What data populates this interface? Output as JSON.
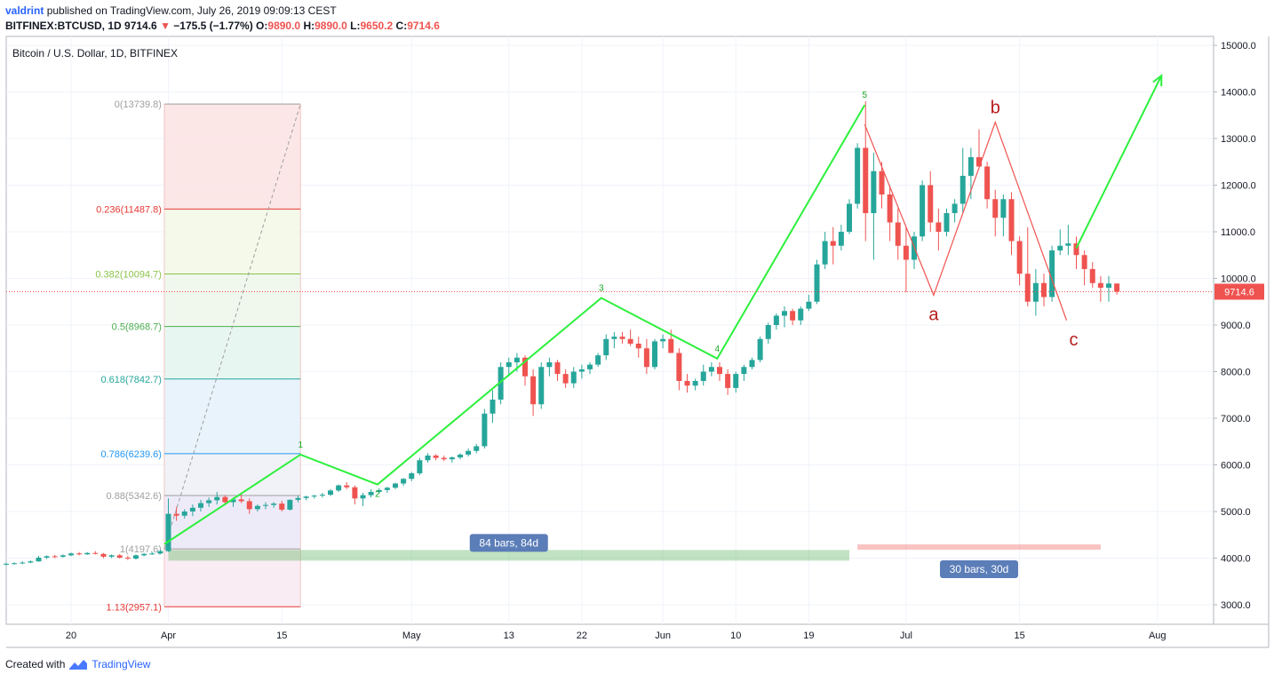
{
  "header": {
    "user": "valdrint",
    "published_text": "published on TradingView.com, July 26, 2019 09:09:13 CEST",
    "symbol": "BITFINEX:BTCUSD, 1D",
    "last": "9714.6",
    "change": "−175.5 (−1.77%)",
    "ohlc": [
      {
        "k": "O:",
        "v": "9890.0"
      },
      {
        "k": "H:",
        "v": "9890.0"
      },
      {
        "k": "L:",
        "v": "9650.2"
      },
      {
        "k": "C:",
        "v": "9714.6"
      }
    ]
  },
  "chart_data": {
    "type": "candlestick",
    "title": "Bitcoin / U.S. Dollar, 1D, BITFINEX",
    "start_date": "2019-03-12",
    "ylim": [
      2500,
      15250
    ],
    "y_ticks": [
      "15000.0",
      "14000.0",
      "13000.0",
      "12000.0",
      "11000.0",
      "10000.0",
      "9000.0",
      "8000.0",
      "7000.0",
      "6000.0",
      "5000.0",
      "4000.0",
      "3000.0"
    ],
    "x_ticks": [
      {
        "label": "20",
        "day": 8
      },
      {
        "label": "Apr",
        "day": 20
      },
      {
        "label": "15",
        "day": 34
      },
      {
        "label": "May",
        "day": 50
      },
      {
        "label": "13",
        "day": 62
      },
      {
        "label": "22",
        "day": 71
      },
      {
        "label": "Jun",
        "day": 81
      },
      {
        "label": "10",
        "day": 90
      },
      {
        "label": "19",
        "day": 99
      },
      {
        "label": "Jul",
        "day": 111
      },
      {
        "label": "15",
        "day": 125
      },
      {
        "label": "Aug",
        "day": 142
      }
    ],
    "last_price": {
      "label": "9714.6",
      "value": 9714.6
    },
    "fib": {
      "start_day": 19.5,
      "end_day": 36.3,
      "levels": [
        {
          "label": "0(13739.8)",
          "value": 13739.8,
          "color": "#9e9e9e"
        },
        {
          "label": "0.236(11487.8)",
          "value": 11487.8,
          "color": "#e53935"
        },
        {
          "label": "0.382(10094.7)",
          "value": 10094.7,
          "color": "#8bc34a"
        },
        {
          "label": "0.5(8968.7)",
          "value": 8968.7,
          "color": "#4caf50"
        },
        {
          "label": "0.618(7842.7)",
          "value": 7842.7,
          "color": "#26a69a"
        },
        {
          "label": "0.786(6239.6)",
          "value": 6239.6,
          "color": "#2196f3"
        },
        {
          "label": "0.88(5342.6)",
          "value": 5342.6,
          "color": "#9e9e9e"
        },
        {
          "label": "1(4197.6)",
          "value": 4197.6,
          "color": "#9e9e9e"
        },
        {
          "label": "1.13(2957.1)",
          "value": 2957.1,
          "color": "#e53935"
        }
      ]
    },
    "waves": {
      "impulse": [
        {
          "day": 19.5,
          "value": 4300,
          "label": ""
        },
        {
          "day": 36.3,
          "value": 6220,
          "label": "1"
        },
        {
          "day": 45.8,
          "value": 5580,
          "label": "2"
        },
        {
          "day": 73.4,
          "value": 9580,
          "label": "3"
        },
        {
          "day": 87.7,
          "value": 8280,
          "label": "4"
        },
        {
          "day": 105.9,
          "value": 13720,
          "label": "5"
        }
      ],
      "correction": [
        {
          "day": 105.9,
          "value": 13300,
          "label": ""
        },
        {
          "day": 114.4,
          "value": 9640,
          "label": "a"
        },
        {
          "day": 122.0,
          "value": 13350,
          "label": "b"
        },
        {
          "day": 130.8,
          "value": 9100,
          "label": "c"
        }
      ],
      "projection": [
        {
          "day": 132.0,
          "value": 10650
        },
        {
          "day": 142.5,
          "value": 14350
        }
      ]
    },
    "ranges": [
      {
        "label": "84 bars, 84d",
        "start_day": 20,
        "end_day": 104,
        "value": 4060,
        "color": "#4caf50"
      },
      {
        "label": "30 bars, 30d",
        "start_day": 105,
        "end_day": 135,
        "value": 4180,
        "color": "#ef5350"
      }
    ],
    "candles": [
      [
        3860,
        3900,
        3840,
        3880
      ],
      [
        3880,
        3910,
        3860,
        3890
      ],
      [
        3890,
        3930,
        3870,
        3905
      ],
      [
        3905,
        3950,
        3890,
        3930
      ],
      [
        3930,
        4050,
        3920,
        4010
      ],
      [
        4010,
        4060,
        3980,
        4040
      ],
      [
        4040,
        4070,
        4000,
        4030
      ],
      [
        4030,
        4080,
        4010,
        4060
      ],
      [
        4060,
        4120,
        4040,
        4100
      ],
      [
        4100,
        4130,
        4060,
        4080
      ],
      [
        4080,
        4130,
        4070,
        4110
      ],
      [
        4110,
        4150,
        4080,
        4090
      ],
      [
        4090,
        4110,
        4000,
        4030
      ],
      [
        4030,
        4080,
        4000,
        4060
      ],
      [
        4060,
        4090,
        3990,
        4010
      ],
      [
        4010,
        4050,
        3960,
        3990
      ],
      [
        3990,
        4080,
        3970,
        4060
      ],
      [
        4060,
        4110,
        4040,
        4090
      ],
      [
        4090,
        4130,
        4070,
        4100
      ],
      [
        4100,
        4180,
        4080,
        4150
      ],
      [
        4150,
        5280,
        4130,
        4950
      ],
      [
        4950,
        5100,
        4800,
        4910
      ],
      [
        4910,
        5050,
        4850,
        5000
      ],
      [
        5000,
        5150,
        4900,
        5080
      ],
      [
        5080,
        5250,
        5000,
        5180
      ],
      [
        5180,
        5300,
        5100,
        5240
      ],
      [
        5240,
        5420,
        5150,
        5310
      ],
      [
        5310,
        5350,
        5150,
        5200
      ],
      [
        5200,
        5300,
        5100,
        5260
      ],
      [
        5260,
        5370,
        5180,
        5220
      ],
      [
        5220,
        5280,
        4950,
        5050
      ],
      [
        5050,
        5150,
        5000,
        5120
      ],
      [
        5120,
        5200,
        5050,
        5140
      ],
      [
        5140,
        5200,
        5080,
        5170
      ],
      [
        5170,
        5230,
        5000,
        5040
      ],
      [
        5040,
        5260,
        5020,
        5250
      ],
      [
        5250,
        5330,
        5200,
        5290
      ],
      [
        5290,
        5340,
        5240,
        5320
      ],
      [
        5320,
        5360,
        5280,
        5340
      ],
      [
        5340,
        5400,
        5300,
        5360
      ],
      [
        5360,
        5480,
        5330,
        5450
      ],
      [
        5450,
        5580,
        5420,
        5560
      ],
      [
        5560,
        5630,
        5480,
        5520
      ],
      [
        5520,
        5560,
        5150,
        5280
      ],
      [
        5280,
        5400,
        5120,
        5350
      ],
      [
        5350,
        5480,
        5300,
        5420
      ],
      [
        5420,
        5500,
        5380,
        5460
      ],
      [
        5460,
        5530,
        5400,
        5510
      ],
      [
        5510,
        5620,
        5480,
        5600
      ],
      [
        5600,
        5720,
        5550,
        5700
      ],
      [
        5700,
        5850,
        5650,
        5820
      ],
      [
        5820,
        6150,
        5780,
        6100
      ],
      [
        6100,
        6250,
        6050,
        6200
      ],
      [
        6200,
        6230,
        6100,
        6150
      ],
      [
        6150,
        6200,
        6080,
        6120
      ],
      [
        6120,
        6180,
        6050,
        6160
      ],
      [
        6160,
        6250,
        6120,
        6220
      ],
      [
        6220,
        6350,
        6180,
        6300
      ],
      [
        6300,
        6450,
        6250,
        6400
      ],
      [
        6400,
        7200,
        6350,
        7100
      ],
      [
        7100,
        7600,
        6900,
        7400
      ],
      [
        7400,
        8200,
        7300,
        8100
      ],
      [
        8100,
        8300,
        7900,
        8200
      ],
      [
        8200,
        8400,
        8000,
        8300
      ],
      [
        8300,
        8350,
        7700,
        7900
      ],
      [
        7900,
        8050,
        7050,
        7300
      ],
      [
        7300,
        8200,
        7200,
        8100
      ],
      [
        8100,
        8300,
        7900,
        8200
      ],
      [
        8200,
        8250,
        7800,
        7950
      ],
      [
        7950,
        8050,
        7650,
        7750
      ],
      [
        7750,
        8100,
        7650,
        8000
      ],
      [
        8000,
        8150,
        7850,
        8050
      ],
      [
        8050,
        8200,
        7950,
        8150
      ],
      [
        8150,
        8400,
        8100,
        8350
      ],
      [
        8350,
        8800,
        8250,
        8700
      ],
      [
        8700,
        8850,
        8500,
        8750
      ],
      [
        8750,
        8850,
        8600,
        8700
      ],
      [
        8700,
        8900,
        8550,
        8600
      ],
      [
        8600,
        8750,
        8300,
        8500
      ],
      [
        8500,
        8700,
        7950,
        8100
      ],
      [
        8100,
        8700,
        8050,
        8650
      ],
      [
        8650,
        8800,
        8500,
        8700
      ],
      [
        8700,
        8900,
        8400,
        8400
      ],
      [
        8400,
        8500,
        7600,
        7800
      ],
      [
        7800,
        7950,
        7550,
        7700
      ],
      [
        7700,
        7850,
        7600,
        7800
      ],
      [
        7800,
        8150,
        7700,
        8000
      ],
      [
        8000,
        8200,
        7900,
        8100
      ],
      [
        8100,
        8200,
        7800,
        7950
      ],
      [
        7950,
        8050,
        7500,
        7650
      ],
      [
        7650,
        8000,
        7550,
        7950
      ],
      [
        7950,
        8150,
        7800,
        8100
      ],
      [
        8100,
        8300,
        8050,
        8250
      ],
      [
        8250,
        8750,
        8200,
        8700
      ],
      [
        8700,
        9050,
        8600,
        9000
      ],
      [
        9000,
        9250,
        8900,
        9200
      ],
      [
        9200,
        9400,
        8950,
        9300
      ],
      [
        9300,
        9350,
        9000,
        9100
      ],
      [
        9100,
        9400,
        9000,
        9350
      ],
      [
        9350,
        9650,
        9300,
        9500
      ],
      [
        9500,
        10400,
        9450,
        10300
      ],
      [
        10300,
        11000,
        10200,
        10800
      ],
      [
        10800,
        11100,
        10300,
        10700
      ],
      [
        10700,
        11150,
        10600,
        11000
      ],
      [
        11000,
        11700,
        10950,
        11600
      ],
      [
        11600,
        12900,
        11500,
        12800
      ],
      [
        12800,
        13800,
        10800,
        11400
      ],
      [
        11400,
        12700,
        10400,
        12300
      ],
      [
        12300,
        12500,
        11500,
        11800
      ],
      [
        11800,
        12000,
        10800,
        11200
      ],
      [
        11200,
        11500,
        10400,
        10700
      ],
      [
        10700,
        11100,
        9700,
        10400
      ],
      [
        10400,
        11000,
        10200,
        10900
      ],
      [
        10900,
        12100,
        10800,
        12000
      ],
      [
        12000,
        12300,
        11000,
        11200
      ],
      [
        11200,
        11500,
        10600,
        11000
      ],
      [
        11000,
        11500,
        10900,
        11400
      ],
      [
        11400,
        11700,
        11200,
        11600
      ],
      [
        11600,
        12800,
        11400,
        12200
      ],
      [
        12200,
        12800,
        11700,
        12600
      ],
      [
        12600,
        13200,
        12400,
        12400
      ],
      [
        12400,
        12500,
        11500,
        11700
      ],
      [
        11700,
        11900,
        10900,
        11300
      ],
      [
        11300,
        11800,
        10900,
        11700
      ],
      [
        11700,
        11850,
        10500,
        10800
      ],
      [
        10800,
        10900,
        9850,
        10100
      ],
      [
        10100,
        11100,
        9400,
        9500
      ],
      [
        9500,
        10200,
        9200,
        9900
      ],
      [
        9900,
        10100,
        9400,
        9600
      ],
      [
        9600,
        10700,
        9500,
        10600
      ],
      [
        10600,
        11050,
        10500,
        10700
      ],
      [
        10700,
        11150,
        10500,
        10750
      ],
      [
        10750,
        10900,
        10200,
        10500
      ],
      [
        10500,
        10600,
        9850,
        10200
      ],
      [
        10200,
        10350,
        9800,
        9900
      ],
      [
        9900,
        10050,
        9500,
        9800
      ],
      [
        9800,
        10050,
        9500,
        9890
      ],
      [
        9890,
        9890,
        9650,
        9714.6
      ]
    ]
  },
  "footer": {
    "created_with": "Created with",
    "brand": "TradingView"
  }
}
